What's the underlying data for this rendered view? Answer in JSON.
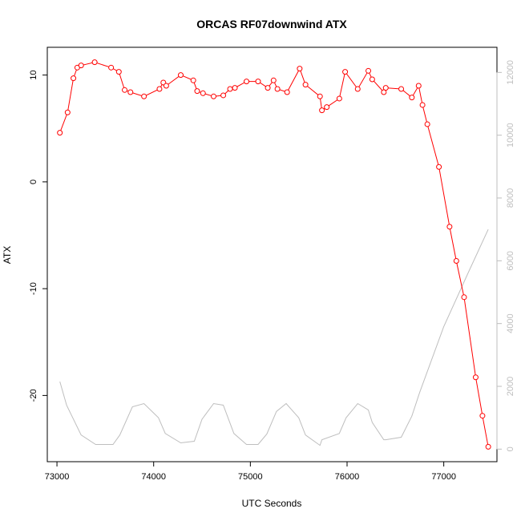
{
  "chart_data": {
    "type": "line",
    "title": "ORCAS RF07downwind ATX",
    "xlabel": "UTC Seconds",
    "ylabel": "ATX",
    "xlim": [
      72900,
      77550
    ],
    "ylim": [
      -26.2,
      12.6
    ],
    "y2lim": [
      -400,
      12800
    ],
    "x_ticks": [
      73000,
      74000,
      75000,
      76000,
      77000
    ],
    "y_ticks": [
      -20,
      -10,
      0,
      10
    ],
    "y2_ticks": [
      0,
      2000,
      4000,
      6000,
      8000,
      10000,
      12000
    ],
    "grid": false,
    "colors": {
      "primary": "#ff0000",
      "secondary": "#bebebe"
    },
    "series": [
      {
        "axis": "left",
        "style": "line+circles",
        "x": [
          73030,
          73110,
          73170,
          73210,
          73250,
          73390,
          73560,
          73640,
          73700,
          73760,
          73900,
          74060,
          74100,
          74130,
          74280,
          74410,
          74450,
          74510,
          74620,
          74720,
          74790,
          74840,
          74960,
          75080,
          75180,
          75240,
          75280,
          75380,
          75510,
          75570,
          75720,
          75740,
          75790,
          75920,
          75980,
          76110,
          76220,
          76260,
          76380,
          76400,
          76560,
          76670,
          76740,
          76780,
          76830,
          76950,
          77060,
          77130,
          77210,
          77330,
          77400,
          77460
        ],
        "y": [
          4.6,
          6.5,
          9.7,
          10.7,
          10.9,
          11.2,
          10.7,
          10.3,
          8.6,
          8.4,
          8.0,
          8.7,
          9.3,
          9.0,
          10.0,
          9.5,
          8.5,
          8.3,
          8.0,
          8.1,
          8.7,
          8.8,
          9.4,
          9.4,
          8.8,
          9.5,
          8.7,
          8.4,
          10.6,
          9.1,
          8.0,
          6.7,
          7.0,
          7.8,
          10.3,
          8.7,
          10.4,
          9.6,
          8.4,
          8.8,
          8.7,
          7.9,
          9.0,
          7.2,
          5.4,
          1.4,
          -4.2,
          -7.4,
          -10.8,
          -18.3,
          -21.9,
          -24.8
        ]
      },
      {
        "axis": "right",
        "style": "line",
        "x": [
          73030,
          73100,
          73250,
          73400,
          73580,
          73650,
          73780,
          73900,
          74050,
          74120,
          74280,
          74420,
          74500,
          74620,
          74720,
          74830,
          74960,
          75080,
          75170,
          75270,
          75370,
          75500,
          75570,
          75720,
          75740,
          75920,
          75990,
          76110,
          76220,
          76260,
          76380,
          76400,
          76560,
          76670,
          76750,
          77000,
          77250,
          77460
        ],
        "y": [
          2150,
          1400,
          450,
          150,
          150,
          450,
          1350,
          1450,
          1000,
          500,
          200,
          250,
          950,
          1450,
          1400,
          500,
          150,
          150,
          480,
          1200,
          1450,
          1000,
          450,
          120,
          300,
          500,
          1000,
          1450,
          1250,
          850,
          300,
          300,
          380,
          1050,
          1800,
          3900,
          5600,
          7000
        ]
      }
    ]
  }
}
